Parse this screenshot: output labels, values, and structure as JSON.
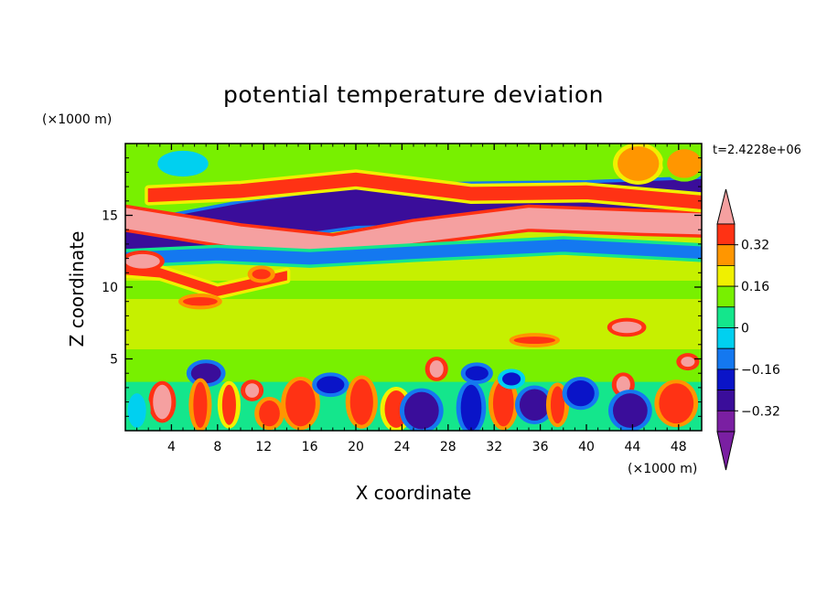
{
  "chart_data": {
    "type": "heatmap",
    "title": "potential temperature deviation",
    "xlabel": "X coordinate",
    "ylabel": "Z coordinate",
    "x_unit": "(×1000 m)",
    "y_unit": "(×1000 m)",
    "time_label": "t=2.4228e+06",
    "xlim": [
      0,
      50
    ],
    "ylim": [
      0,
      20
    ],
    "x_ticks": [
      4,
      8,
      12,
      16,
      20,
      24,
      28,
      32,
      36,
      40,
      44,
      48
    ],
    "y_ticks": [
      5,
      10,
      15
    ],
    "colorbar": {
      "levels": [
        -0.4,
        -0.32,
        -0.24,
        -0.16,
        -0.08,
        0,
        0.08,
        0.16,
        0.24,
        0.32,
        0.4
      ],
      "tick_labels": [
        "0.32",
        "0.16",
        "0",
        "−0.16",
        "−0.32"
      ],
      "tick_values": [
        0.32,
        0.16,
        0,
        -0.16,
        -0.32
      ],
      "colors": [
        "#7a1fa2",
        "#3a0d9a",
        "#0a14c8",
        "#1478f0",
        "#00d0f0",
        "#14e68c",
        "#78f000",
        "#f0f000",
        "#ff9600",
        "#ff3214",
        "#f5a0a0"
      ],
      "extend": "both"
    },
    "features": [
      {
        "type": "band",
        "points": [
          [
            0,
            13.0
          ],
          [
            10,
            14.5
          ],
          [
            20,
            15.6
          ],
          [
            30,
            15.8
          ],
          [
            40,
            15.9
          ],
          [
            50,
            16.2
          ]
        ],
        "width": 2.6,
        "value": -0.36
      },
      {
        "type": "band",
        "points": [
          [
            0,
            14.8
          ],
          [
            10,
            13.5
          ],
          [
            18,
            12.8
          ],
          [
            25,
            13.8
          ],
          [
            35,
            14.8
          ],
          [
            45,
            14.5
          ],
          [
            50,
            14.4
          ]
        ],
        "width": 1.4,
        "value": 0.4
      },
      {
        "type": "band",
        "points": [
          [
            2,
            16.4
          ],
          [
            10,
            16.7
          ],
          [
            20,
            17.5
          ],
          [
            30,
            16.5
          ],
          [
            40,
            16.6
          ],
          [
            50,
            15.9
          ]
        ],
        "width": 0.9,
        "value": 0.3
      },
      {
        "type": "band",
        "points": [
          [
            0,
            12.0
          ],
          [
            8,
            12.3
          ],
          [
            16,
            12.0
          ],
          [
            25,
            12.4
          ],
          [
            38,
            12.9
          ],
          [
            50,
            12.4
          ]
        ],
        "width": 0.8,
        "value": -0.2
      },
      {
        "type": "band",
        "points": [
          [
            0,
            11.2
          ],
          [
            3,
            11.0
          ],
          [
            8,
            9.7
          ],
          [
            14,
            10.8
          ]
        ],
        "width": 0.6,
        "value": 0.25
      },
      {
        "type": "blob",
        "x": 1.5,
        "y": 11.8,
        "rx": 1.5,
        "ry": 0.5,
        "value": 0.4
      },
      {
        "type": "blob",
        "x": 6.5,
        "y": 9.0,
        "rx": 1.5,
        "ry": 0.3,
        "value": 0.28
      },
      {
        "type": "blob",
        "x": 11.8,
        "y": 10.9,
        "rx": 0.8,
        "ry": 0.35,
        "value": 0.3
      },
      {
        "type": "blob",
        "x": 35.5,
        "y": 6.3,
        "rx": 1.8,
        "ry": 0.25,
        "value": 0.3
      },
      {
        "type": "blob",
        "x": 43.5,
        "y": 7.2,
        "rx": 1.3,
        "ry": 0.4,
        "value": 0.38
      },
      {
        "type": "blob",
        "x": 3.2,
        "y": 2.0,
        "rx": 0.8,
        "ry": 1.2,
        "value": 0.4
      },
      {
        "type": "blob",
        "x": 11.0,
        "y": 2.8,
        "rx": 0.6,
        "ry": 0.5,
        "value": 0.38
      },
      {
        "type": "blob",
        "x": 27.0,
        "y": 4.3,
        "rx": 0.6,
        "ry": 0.6,
        "value": 0.38
      },
      {
        "type": "blob",
        "x": 43.2,
        "y": 3.2,
        "rx": 0.6,
        "ry": 0.6,
        "value": 0.38
      },
      {
        "type": "blob",
        "x": 48.8,
        "y": 4.8,
        "rx": 0.6,
        "ry": 0.35,
        "value": 0.38
      },
      {
        "type": "blob",
        "x": 7.0,
        "y": 4.0,
        "rx": 1.3,
        "ry": 0.7,
        "value": -0.36
      },
      {
        "type": "blob",
        "x": 6.5,
        "y": 1.8,
        "rx": 0.6,
        "ry": 1.6,
        "value": 0.28
      },
      {
        "type": "blob",
        "x": 9.0,
        "y": 1.8,
        "rx": 0.6,
        "ry": 1.4,
        "value": 0.25
      },
      {
        "type": "blob",
        "x": 12.5,
        "y": 1.2,
        "rx": 0.9,
        "ry": 0.9,
        "value": 0.3
      },
      {
        "type": "blob",
        "x": 15.2,
        "y": 1.9,
        "rx": 1.3,
        "ry": 1.6,
        "value": 0.3
      },
      {
        "type": "blob",
        "x": 20.5,
        "y": 2.0,
        "rx": 1.0,
        "ry": 1.6,
        "value": 0.28
      },
      {
        "type": "blob",
        "x": 23.5,
        "y": 1.5,
        "rx": 1.0,
        "ry": 1.3,
        "value": 0.25
      },
      {
        "type": "blob",
        "x": 25.7,
        "y": 1.4,
        "rx": 1.5,
        "ry": 1.3,
        "value": -0.36
      },
      {
        "type": "blob",
        "x": 30.0,
        "y": 1.6,
        "rx": 0.9,
        "ry": 1.6,
        "value": -0.3
      },
      {
        "type": "blob",
        "x": 32.8,
        "y": 1.9,
        "rx": 0.9,
        "ry": 1.6,
        "value": 0.3
      },
      {
        "type": "blob",
        "x": 35.5,
        "y": 1.8,
        "rx": 1.3,
        "ry": 1.1,
        "value": -0.36
      },
      {
        "type": "blob",
        "x": 37.5,
        "y": 1.8,
        "rx": 0.6,
        "ry": 1.3,
        "value": 0.28
      },
      {
        "type": "blob",
        "x": 39.5,
        "y": 2.6,
        "rx": 1.2,
        "ry": 0.9,
        "value": -0.32
      },
      {
        "type": "blob",
        "x": 43.8,
        "y": 1.4,
        "rx": 1.5,
        "ry": 1.2,
        "value": -0.36
      },
      {
        "type": "blob",
        "x": 47.8,
        "y": 1.9,
        "rx": 1.5,
        "ry": 1.4,
        "value": 0.3
      },
      {
        "type": "blob",
        "x": 17.8,
        "y": 3.2,
        "rx": 1.2,
        "ry": 0.6,
        "value": -0.3
      },
      {
        "type": "blob",
        "x": 30.5,
        "y": 4.0,
        "rx": 1.0,
        "ry": 0.5,
        "value": -0.3
      },
      {
        "type": "blob",
        "x": 33.5,
        "y": 3.6,
        "rx": 0.8,
        "ry": 0.45,
        "value": -0.25
      },
      {
        "type": "blob",
        "x": 1.0,
        "y": 1.4,
        "rx": 0.8,
        "ry": 1.2,
        "value": -0.14
      },
      {
        "type": "blob",
        "x": 44.5,
        "y": 18.6,
        "rx": 1.8,
        "ry": 1.2,
        "value": 0.2
      },
      {
        "type": "blob",
        "x": 5.0,
        "y": 18.6,
        "rx": 2.2,
        "ry": 0.9,
        "value": -0.12
      },
      {
        "type": "blob",
        "x": 48.5,
        "y": 18.6,
        "rx": 1.5,
        "ry": 1.0,
        "value": 0.18
      }
    ]
  }
}
